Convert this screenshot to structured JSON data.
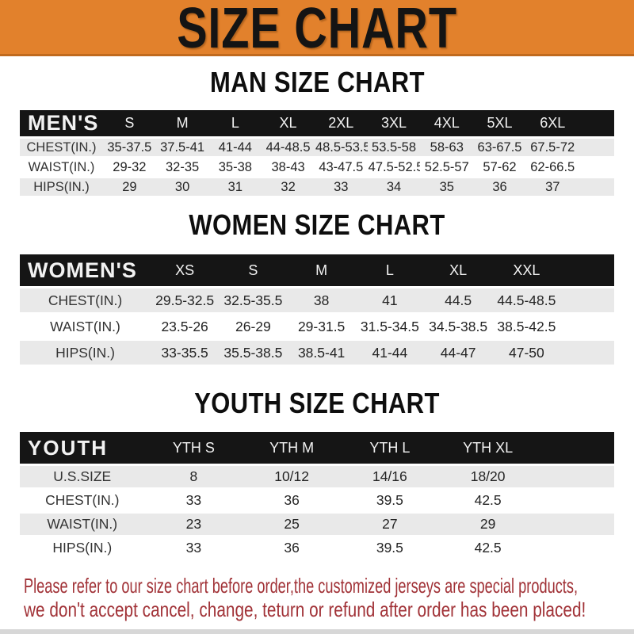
{
  "banner": {
    "title": "SIZE CHART",
    "bg_color": "#E2812C",
    "text_color": "#141414"
  },
  "sections": [
    {
      "id": "men",
      "title": "MAN SIZE CHART",
      "corner_label": "MEN'S",
      "columns": [
        "S",
        "M",
        "L",
        "XL",
        "2XL",
        "3XL",
        "4XL",
        "5XL",
        "6XL"
      ],
      "rows": [
        {
          "label": "CHEST(IN.)",
          "values": [
            "35-37.5",
            "37.5-41",
            "41-44",
            "44-48.5",
            "48.5-53.5",
            "53.5-58",
            "58-63",
            "63-67.5",
            "67.5-72"
          ]
        },
        {
          "label": "WAIST(IN.)",
          "values": [
            "29-32",
            "32-35",
            "35-38",
            "38-43",
            "43-47.5",
            "47.5-52.5",
            "52.5-57",
            "57-62",
            "62-66.5"
          ]
        },
        {
          "label": "HIPS(IN.)",
          "values": [
            "29",
            "30",
            "31",
            "32",
            "33",
            "34",
            "35",
            "36",
            "37"
          ]
        }
      ]
    },
    {
      "id": "women",
      "title": "WOMEN SIZE CHART",
      "corner_label": "WOMEN'S",
      "columns": [
        "XS",
        "S",
        "M",
        "L",
        "XL",
        "XXL"
      ],
      "rows": [
        {
          "label": "CHEST(IN.)",
          "values": [
            "29.5-32.5",
            "32.5-35.5",
            "38",
            "41",
            "44.5",
            "44.5-48.5"
          ]
        },
        {
          "label": "WAIST(IN.)",
          "values": [
            "23.5-26",
            "26-29",
            "29-31.5",
            "31.5-34.5",
            "34.5-38.5",
            "38.5-42.5"
          ]
        },
        {
          "label": "HIPS(IN.)",
          "values": [
            "33-35.5",
            "35.5-38.5",
            "38.5-41",
            "41-44",
            "44-47",
            "47-50"
          ]
        }
      ]
    },
    {
      "id": "youth",
      "title": "YOUTH SIZE CHART",
      "corner_label": "YOUTH",
      "columns": [
        "YTH S",
        "YTH M",
        "YTH L",
        "YTH XL"
      ],
      "rows": [
        {
          "label": "U.S.SIZE",
          "values": [
            "8",
            "10/12",
            "14/16",
            "18/20"
          ]
        },
        {
          "label": "CHEST(IN.)",
          "values": [
            "33",
            "36",
            "39.5",
            "42.5"
          ]
        },
        {
          "label": "WAIST(IN.)",
          "values": [
            "23",
            "25",
            "27",
            "29"
          ]
        },
        {
          "label": "HIPS(IN.)",
          "values": [
            "33",
            "36",
            "39.5",
            "42.5"
          ]
        }
      ]
    }
  ],
  "footer": {
    "line1": "Please refer to our size chart before order,the customized jerseys are special products,",
    "line2": "we don't accept cancel, change, teturn or refund after order has been placed!",
    "text_color": "#A13237"
  },
  "colors": {
    "banner_orange": "#E2812C",
    "header_black": "#151515",
    "row_gray": "#E9E9E9",
    "note_red": "#A13237"
  }
}
